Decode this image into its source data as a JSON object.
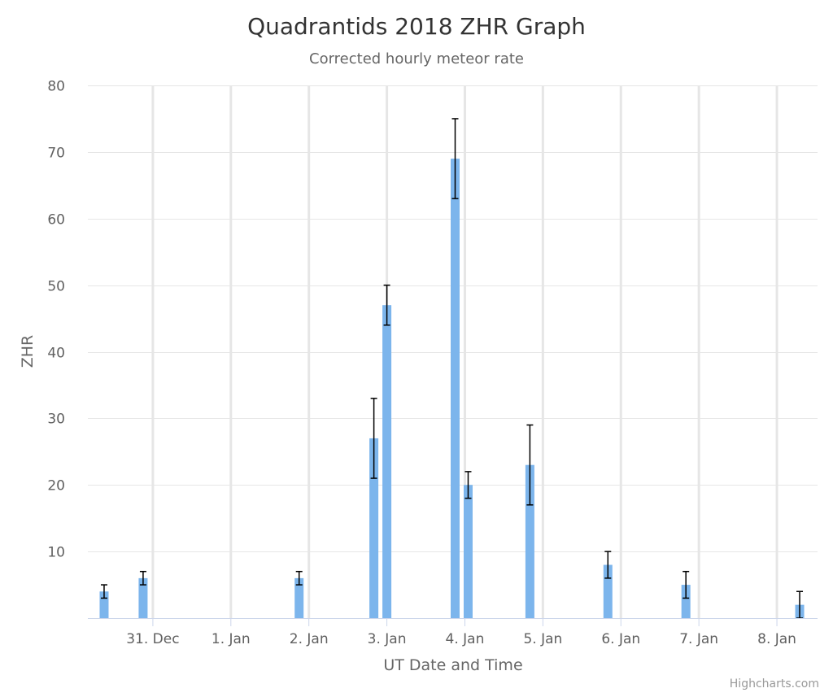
{
  "chart_data": {
    "type": "bar",
    "title": "Quadrantids 2018 ZHR Graph",
    "subtitle": "Corrected hourly meteor rate",
    "xlabel": "UT Date and Time",
    "ylabel": "ZHR",
    "ylim": [
      0,
      80
    ],
    "yticks": [
      10,
      20,
      30,
      40,
      50,
      60,
      70,
      80
    ],
    "xlim": [
      "2017-12-30T04:00",
      "2018-01-08T12:30"
    ],
    "x_ticks": [
      {
        "date": "2017-12-31",
        "label": "31. Dec"
      },
      {
        "date": "2018-01-01",
        "label": "1. Jan"
      },
      {
        "date": "2018-01-02",
        "label": "2. Jan"
      },
      {
        "date": "2018-01-03",
        "label": "3. Jan"
      },
      {
        "date": "2018-01-04",
        "label": "4. Jan"
      },
      {
        "date": "2018-01-05",
        "label": "5. Jan"
      },
      {
        "date": "2018-01-06",
        "label": "6. Jan"
      },
      {
        "date": "2018-01-07",
        "label": "7. Jan"
      },
      {
        "date": "2018-01-08",
        "label": "8. Jan"
      }
    ],
    "grid": true,
    "legend": "none",
    "bar_color": "#7cb5ec",
    "error_bar_color": "#000000",
    "points": [
      {
        "x": "2017-12-30T09:00",
        "y": 4,
        "low": 3,
        "high": 5
      },
      {
        "x": "2017-12-30T21:00",
        "y": 6,
        "low": 5,
        "high": 7
      },
      {
        "x": "2018-01-01T21:00",
        "y": 6,
        "low": 5,
        "high": 7
      },
      {
        "x": "2018-01-02T20:00",
        "y": 27,
        "low": 21,
        "high": 33
      },
      {
        "x": "2018-01-03T00:00",
        "y": 47,
        "low": 44,
        "high": 50
      },
      {
        "x": "2018-01-03T21:00",
        "y": 69,
        "low": 63,
        "high": 75
      },
      {
        "x": "2018-01-04T01:00",
        "y": 20,
        "low": 18,
        "high": 22
      },
      {
        "x": "2018-01-04T20:00",
        "y": 23,
        "low": 17,
        "high": 29
      },
      {
        "x": "2018-01-05T20:00",
        "y": 8,
        "low": 6,
        "high": 10
      },
      {
        "x": "2018-01-06T20:00",
        "y": 5,
        "low": 3,
        "high": 7
      },
      {
        "x": "2018-01-08T07:00",
        "y": 2,
        "low": 0,
        "high": 4
      }
    ]
  },
  "credits": "Highcharts.com"
}
